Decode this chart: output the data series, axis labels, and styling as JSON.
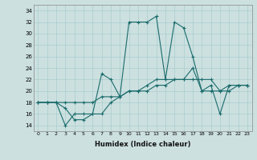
{
  "title": "",
  "xlabel": "Humidex (Indice chaleur)",
  "ylabel": "",
  "xlim": [
    -0.5,
    23.5
  ],
  "ylim": [
    13,
    35
  ],
  "yticks": [
    14,
    16,
    18,
    20,
    22,
    24,
    26,
    28,
    30,
    32,
    34
  ],
  "xticks": [
    0,
    1,
    2,
    3,
    4,
    5,
    6,
    7,
    8,
    9,
    10,
    11,
    12,
    13,
    14,
    15,
    16,
    17,
    18,
    19,
    20,
    21,
    22,
    23
  ],
  "bg_color": "#cce0e0",
  "line_color": "#1a6b6b",
  "grid_color": "#aacccc",
  "line1_x": [
    0,
    1,
    2,
    3,
    4,
    5,
    6,
    7,
    8,
    9,
    10,
    11,
    12,
    13,
    14,
    15,
    16,
    17,
    18,
    19,
    20,
    21,
    22,
    23
  ],
  "line1_y": [
    18,
    18,
    18,
    14,
    16,
    16,
    16,
    23,
    22,
    19,
    32,
    32,
    32,
    33,
    22,
    32,
    31,
    26,
    20,
    21,
    16,
    21,
    21,
    21
  ],
  "line2_x": [
    0,
    1,
    2,
    3,
    4,
    5,
    6,
    7,
    8,
    9,
    10,
    11,
    12,
    13,
    14,
    15,
    16,
    17,
    18,
    19,
    20,
    21,
    22,
    23
  ],
  "line2_y": [
    18,
    18,
    18,
    18,
    18,
    18,
    18,
    19,
    19,
    19,
    20,
    20,
    20,
    21,
    21,
    22,
    22,
    22,
    22,
    22,
    20,
    20,
    21,
    21
  ],
  "line3_x": [
    0,
    1,
    2,
    3,
    4,
    5,
    6,
    7,
    8,
    9,
    10,
    11,
    12,
    13,
    14,
    15,
    16,
    17,
    18,
    19,
    20,
    21,
    22,
    23
  ],
  "line3_y": [
    18,
    18,
    18,
    17,
    15,
    15,
    16,
    16,
    18,
    19,
    20,
    20,
    21,
    22,
    22,
    22,
    22,
    24,
    20,
    20,
    20,
    21,
    21,
    21
  ]
}
